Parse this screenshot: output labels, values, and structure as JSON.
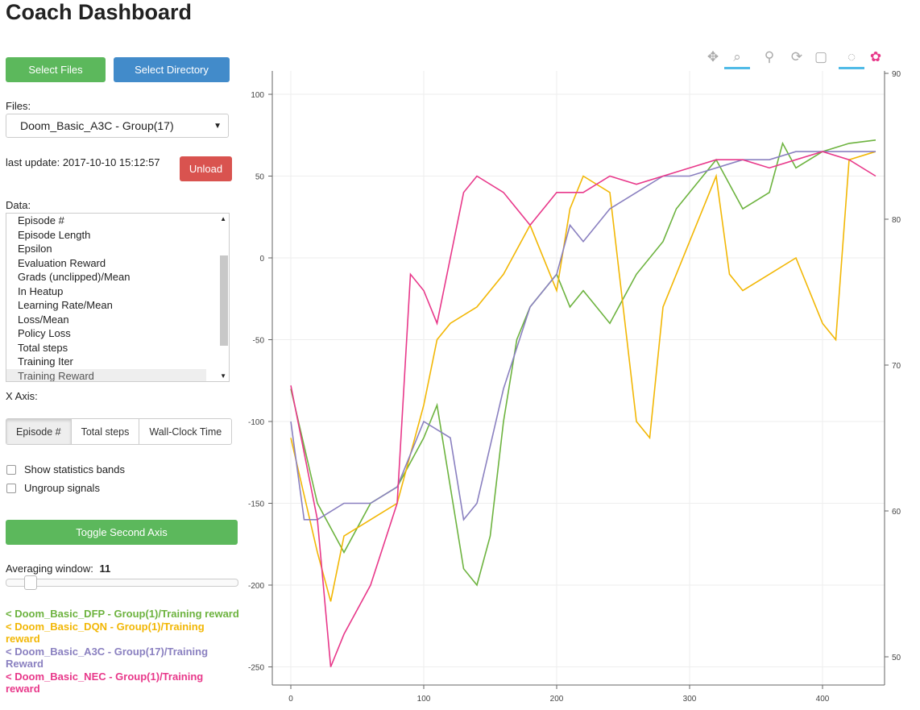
{
  "title": "Coach Dashboard",
  "buttons": {
    "select_files": "Select Files",
    "select_directory": "Select Directory",
    "unload": "Unload",
    "toggle_axis": "Toggle Second Axis"
  },
  "files": {
    "label": "Files:",
    "selected": "Doom_Basic_A3C - Group(17)"
  },
  "last_update": "last update: 2017-10-10 15:12:57",
  "data": {
    "label": "Data:",
    "items": [
      "Episode #",
      "Episode Length",
      "Epsilon",
      "Evaluation Reward",
      "Grads (unclipped)/Mean",
      "In Heatup",
      "Learning Rate/Mean",
      "Loss/Mean",
      "Policy Loss",
      "Total steps",
      "Training Iter",
      "Training Reward"
    ],
    "selected": "Training Reward"
  },
  "x_axis": {
    "label": "X Axis:",
    "options": [
      "Episode #",
      "Total steps",
      "Wall-Clock Time"
    ],
    "selected": "Episode #"
  },
  "checkboxes": [
    {
      "label": "Show statistics bands",
      "checked": false
    },
    {
      "label": "Ungroup signals",
      "checked": false
    }
  ],
  "averaging": {
    "label": "Averaging window:",
    "value": "11"
  },
  "legend": [
    {
      "text": "< Doom_Basic_DFP - Group(1)/Training reward",
      "color": "#6db33f"
    },
    {
      "text": "< Doom_Basic_DQN - Group(1)/Training reward",
      "color": "#f2b705"
    },
    {
      "text": "< Doom_Basic_A3C - Group(17)/Training Reward",
      "color": "#8a80c0"
    },
    {
      "text": "< Doom_Basic_NEC - Group(1)/Training reward",
      "color": "#e8388a"
    }
  ],
  "toolbar": [
    "pan-icon",
    "box-zoom-icon",
    "wheel-zoom-icon",
    "reset-icon",
    "save-icon",
    "hover-icon",
    "bokeh-logo-icon"
  ],
  "colors": {
    "green": "#5cb85c",
    "blue": "#428bca",
    "red": "#d9534f"
  },
  "chart_data": {
    "type": "line",
    "xlim": [
      -20,
      445
    ],
    "ylim": [
      -260,
      110
    ],
    "y2lim": [
      48,
      90
    ],
    "x_ticks": [
      "0",
      "100",
      "200",
      "300",
      "400"
    ],
    "y_ticks": [
      "100",
      "50",
      "0",
      "-50",
      "-100",
      "-150",
      "-200",
      "-250"
    ],
    "y2_ticks": [
      "90",
      "80",
      "70",
      "60",
      "50"
    ],
    "grid": true,
    "series": [
      {
        "name": "Doom_Basic_DFP - Group(1)/Training reward",
        "color": "#6db33f",
        "x": [
          0,
          20,
          40,
          60,
          80,
          100,
          110,
          120,
          130,
          140,
          150,
          160,
          170,
          180,
          200,
          210,
          220,
          240,
          260,
          280,
          290,
          300,
          310,
          320,
          340,
          360,
          370,
          380,
          400,
          420,
          440
        ],
        "y": [
          -80,
          -150,
          -180,
          -150,
          -140,
          -110,
          -90,
          -140,
          -190,
          -200,
          -170,
          -100,
          -50,
          -30,
          -10,
          -30,
          -20,
          -40,
          -10,
          10,
          30,
          40,
          50,
          60,
          30,
          40,
          70,
          55,
          65,
          70,
          72
        ]
      },
      {
        "name": "Doom_Basic_DQN - Group(1)/Training reward",
        "color": "#f2b705",
        "x": [
          0,
          20,
          30,
          40,
          60,
          80,
          100,
          110,
          120,
          140,
          160,
          180,
          200,
          210,
          220,
          240,
          260,
          270,
          280,
          300,
          310,
          320,
          330,
          340,
          360,
          380,
          400,
          410,
          420,
          440
        ],
        "y": [
          -110,
          -180,
          -210,
          -170,
          -160,
          -150,
          -90,
          -50,
          -40,
          -30,
          -10,
          20,
          -20,
          30,
          50,
          40,
          -100,
          -110,
          -30,
          10,
          30,
          50,
          -10,
          -20,
          -10,
          0,
          -40,
          -50,
          60,
          65
        ]
      },
      {
        "name": "Doom_Basic_A3C - Group(17)/Training Reward",
        "color": "#8a80c0",
        "x": [
          0,
          10,
          20,
          40,
          60,
          80,
          100,
          120,
          130,
          140,
          160,
          180,
          200,
          210,
          220,
          240,
          260,
          280,
          300,
          320,
          340,
          360,
          380,
          400,
          420,
          440
        ],
        "y": [
          -100,
          -160,
          -160,
          -150,
          -150,
          -140,
          -100,
          -110,
          -160,
          -150,
          -80,
          -30,
          -10,
          20,
          10,
          30,
          40,
          50,
          50,
          55,
          60,
          60,
          65,
          65,
          65,
          65
        ]
      },
      {
        "name": "Doom_Basic_NEC - Group(1)/Training reward",
        "color": "#e8388a",
        "x": [
          0,
          20,
          30,
          40,
          60,
          80,
          90,
          100,
          110,
          130,
          140,
          160,
          180,
          200,
          220,
          240,
          260,
          280,
          300,
          320,
          340,
          360,
          380,
          400,
          420,
          440
        ],
        "y": [
          -78,
          -160,
          -250,
          -230,
          -200,
          -150,
          -10,
          -20,
          -40,
          40,
          50,
          40,
          20,
          40,
          40,
          50,
          45,
          50,
          55,
          60,
          60,
          55,
          60,
          65,
          60,
          50
        ]
      }
    ]
  }
}
